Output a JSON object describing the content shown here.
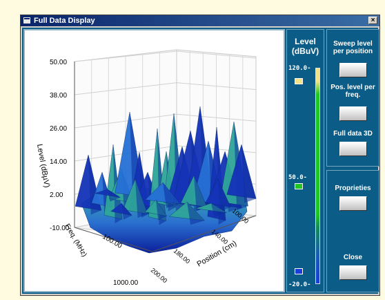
{
  "window": {
    "title": "Full Data Display",
    "close_glyph": "×",
    "icon": "app-icon"
  },
  "level_panel": {
    "title": "Level",
    "unit": "(dBuV)",
    "ticks": [
      "120.0-",
      "50.0-",
      "-20.0-"
    ],
    "colors": {
      "high": "#f4e28a",
      "mid": "#22c522",
      "low": "#1a3cd8"
    }
  },
  "buttons": {
    "sweep_label": "Sweep level per position",
    "pos_label": "Pos. level per freq.",
    "full3d_label": "Full data 3D",
    "properties_label": "Proprieties",
    "close_label": "Close"
  },
  "chart_data": {
    "type": "surface3d",
    "z_label": "Level (dBµV)",
    "z_ticks": [
      "50.00",
      "38.00",
      "26.00",
      "14.00",
      "2.00",
      "-10.00"
    ],
    "z_range": [
      -10,
      50
    ],
    "x_label": "Freq. (MHz)",
    "x_ticks": [
      "100.00",
      "1000.00"
    ],
    "y_label": "Position (cm)",
    "y_ticks": [
      "100.00",
      "140.00",
      "180.00",
      "200.00"
    ],
    "grid": true
  }
}
